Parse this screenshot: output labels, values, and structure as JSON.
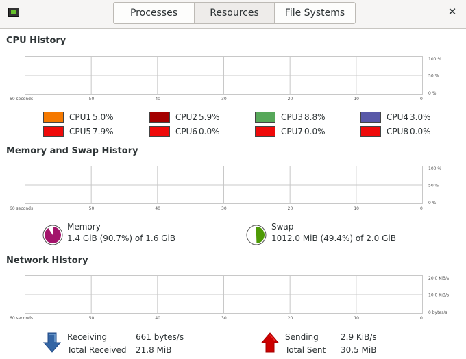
{
  "header": {
    "tabs": [
      {
        "label": "Processes"
      },
      {
        "label": "Resources",
        "active": true
      },
      {
        "label": "File Systems"
      }
    ],
    "close_glyph": "✕"
  },
  "cpu": {
    "title": "CPU History",
    "x_ticks": [
      "60 seconds",
      "50",
      "40",
      "30",
      "20",
      "10",
      "0"
    ],
    "y_ticks": [
      "100 %",
      "50 %",
      "0 %"
    ],
    "cores": [
      {
        "label": "CPU1",
        "value": "5.0%",
        "color": "#f57900"
      },
      {
        "label": "CPU2",
        "value": "5.9%",
        "color": "#a40000"
      },
      {
        "label": "CPU3",
        "value": "8.8%",
        "color": "#57a85a"
      },
      {
        "label": "CPU4",
        "value": "3.0%",
        "color": "#5959a8"
      },
      {
        "label": "CPU5",
        "value": "7.9%",
        "color": "#ef0a0a"
      },
      {
        "label": "CPU6",
        "value": "0.0%",
        "color": "#ef0a0a"
      },
      {
        "label": "CPU7",
        "value": "0.0%",
        "color": "#ef0a0a"
      },
      {
        "label": "CPU8",
        "value": "0.0%",
        "color": "#ef0a0a"
      }
    ]
  },
  "memory": {
    "title": "Memory and Swap History",
    "x_ticks": [
      "60 seconds",
      "50",
      "40",
      "30",
      "20",
      "10",
      "0"
    ],
    "y_ticks": [
      "100 %",
      "50 %",
      "0 %"
    ],
    "mem": {
      "label": "Memory",
      "detail": "1.4 GiB (90.7%) of 1.6 GiB",
      "fraction": 0.907,
      "color": "#a3146b"
    },
    "swap": {
      "label": "Swap",
      "detail": "1012.0 MiB (49.4%) of 2.0 GiB",
      "fraction": 0.494,
      "color": "#4e9a06"
    }
  },
  "network": {
    "title": "Network History",
    "x_ticks": [
      "60 seconds",
      "50",
      "40",
      "30",
      "20",
      "10",
      "0"
    ],
    "y_ticks": [
      "20.0 KiB/s",
      "10.0 KiB/s",
      "0 bytes/s"
    ],
    "receiving": {
      "label": "Receiving",
      "rate": "661 bytes/s",
      "total_label": "Total Received",
      "total": "21.8 MiB",
      "color": "#3465a4"
    },
    "sending": {
      "label": "Sending",
      "rate": "2.9 KiB/s",
      "total_label": "Total Sent",
      "total": "30.5 MiB",
      "color": "#cc0000"
    }
  }
}
